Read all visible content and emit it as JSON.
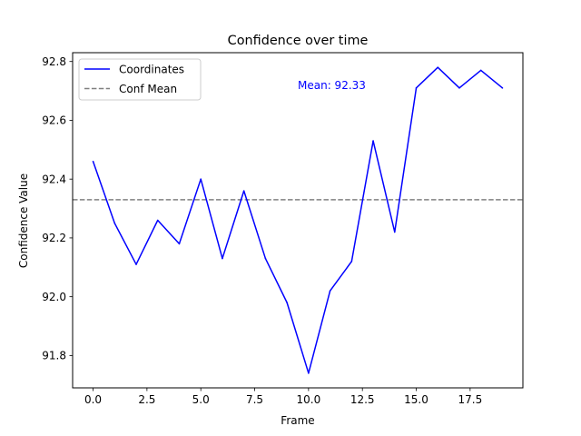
{
  "chart_data": {
    "type": "line",
    "title": "Confidence over time",
    "xlabel": "Frame",
    "ylabel": "Confidence Value",
    "xlim": [
      -0.95,
      19.95
    ],
    "ylim": [
      91.69,
      92.83
    ],
    "x_ticks": [
      0.0,
      2.5,
      5.0,
      7.5,
      10.0,
      12.5,
      15.0,
      17.5
    ],
    "x_tick_labels": [
      "0.0",
      "2.5",
      "5.0",
      "7.5",
      "10.0",
      "12.5",
      "15.0",
      "17.5"
    ],
    "y_ticks": [
      91.8,
      92.0,
      92.2,
      92.4,
      92.6,
      92.8
    ],
    "y_tick_labels": [
      "91.8",
      "92.0",
      "92.2",
      "92.4",
      "92.6",
      "92.8"
    ],
    "grid": false,
    "legend_position": "upper left",
    "series": [
      {
        "name": "Coordinates",
        "color": "#0000ff",
        "style": "solid",
        "x": [
          0,
          1,
          2,
          3,
          4,
          5,
          6,
          7,
          8,
          9,
          10,
          11,
          12,
          13,
          14,
          15,
          16,
          17,
          18,
          19
        ],
        "values": [
          92.46,
          92.25,
          92.11,
          92.26,
          92.18,
          92.4,
          92.13,
          92.36,
          92.13,
          91.98,
          91.74,
          92.02,
          92.12,
          92.53,
          92.22,
          92.71,
          92.78,
          92.71,
          92.77,
          92.71
        ]
      }
    ],
    "reference_lines": [
      {
        "name": "Conf Mean",
        "value": 92.33,
        "color": "#808080",
        "style": "dashed"
      }
    ],
    "annotations": [
      {
        "text": "Mean: 92.33",
        "color": "#0000ff",
        "x": 9.5,
        "y": 92.72
      }
    ]
  }
}
